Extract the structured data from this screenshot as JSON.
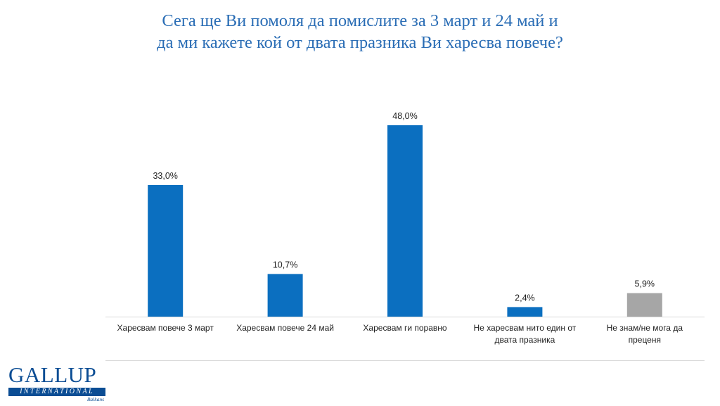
{
  "title": {
    "line1": "Сега ще Ви помоля да помислите за 3 март и 24 май и",
    "line2": "да ми кажете кой от двата празника Ви харесва повече?"
  },
  "chart_data": {
    "type": "bar",
    "categories": [
      [
        "Харесвам повече 3 март"
      ],
      [
        "Харесвам повече 24 май"
      ],
      [
        "Харесвам ги поравно"
      ],
      [
        "Не харесвам нито един от",
        "двата празника"
      ],
      [
        "Не знам/не мога да",
        "преценя"
      ]
    ],
    "values": [
      33.0,
      10.7,
      48.0,
      2.4,
      5.9
    ],
    "value_labels": [
      "33,0%",
      "10,7%",
      "48,0%",
      "2,4%",
      "5,9%"
    ],
    "colors": [
      "#0b6fc0",
      "#0b6fc0",
      "#0b6fc0",
      "#0b6fc0",
      "#a6a6a6"
    ],
    "ylim": [
      0,
      50
    ],
    "grid": false,
    "legend": "none"
  },
  "logo": {
    "word": "GALLUP",
    "band": "INTERNATIONAL",
    "sub": "Balkans"
  }
}
